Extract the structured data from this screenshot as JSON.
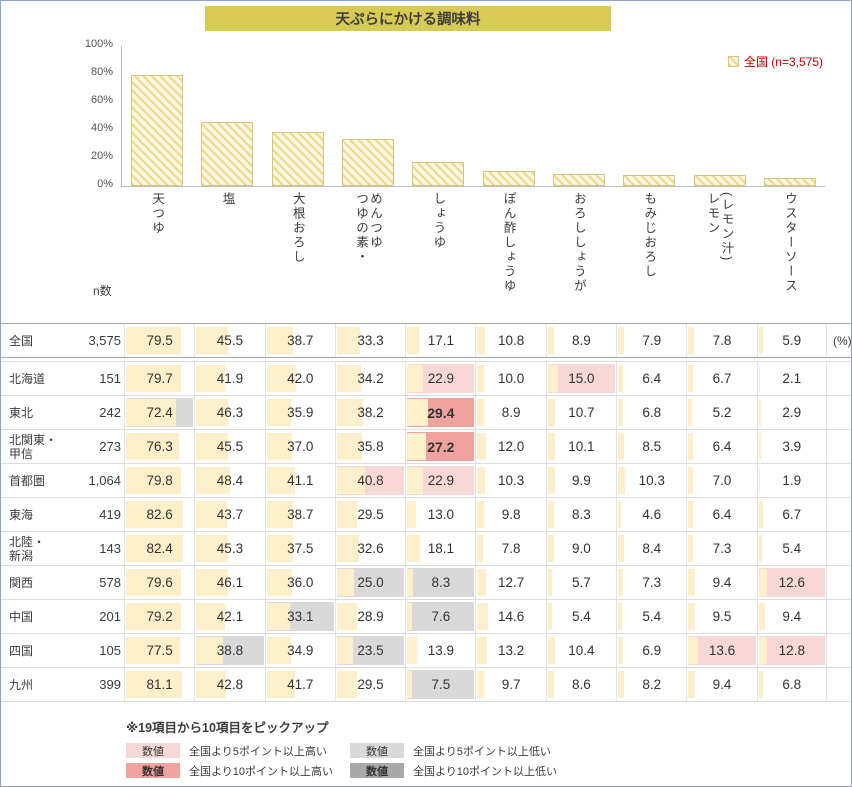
{
  "title": {
    "text": "天ぷらにかける調味料"
  },
  "chart_data": {
    "type": "bar",
    "title": "天ぷらにかける調味料",
    "legend": "全国 (n=3,575)",
    "categories": [
      "天つゆ",
      "塩",
      "大根おろし",
      "つゆの素・\nめんつゆ",
      "しょうゆ",
      "ぽん酢しょうゆ",
      "おろししょうが",
      "もみじおろし",
      "レモン\n(レモン汁)",
      "ウスターソース"
    ],
    "values": [
      79.5,
      45.5,
      38.7,
      33.3,
      17.1,
      10.8,
      8.9,
      7.9,
      7.8,
      5.9
    ],
    "xlabel": "",
    "ylabel": "",
    "ylim": [
      0,
      100
    ],
    "yticks": [
      "100%",
      "80%",
      "60%",
      "40%",
      "20%",
      "0%"
    ],
    "grid": false,
    "legend_position": "top-right"
  },
  "table": {
    "n_label": "n数",
    "unit_label": "(%)",
    "rows": [
      {
        "region": "全国",
        "n": "3,575",
        "national": true,
        "cells": [
          {
            "v": "79.5"
          },
          {
            "v": "45.5"
          },
          {
            "v": "38.7"
          },
          {
            "v": "33.3"
          },
          {
            "v": "17.1"
          },
          {
            "v": "10.8"
          },
          {
            "v": "8.9"
          },
          {
            "v": "7.9"
          },
          {
            "v": "7.8"
          },
          {
            "v": "5.9"
          }
        ]
      },
      {
        "region": "北海道",
        "n": "151",
        "cells": [
          {
            "v": "79.7"
          },
          {
            "v": "41.9"
          },
          {
            "v": "42.0"
          },
          {
            "v": "34.2"
          },
          {
            "v": "22.9",
            "s": "h5"
          },
          {
            "v": "10.0"
          },
          {
            "v": "15.0",
            "s": "h5"
          },
          {
            "v": "6.4"
          },
          {
            "v": "6.7"
          },
          {
            "v": "2.1"
          }
        ]
      },
      {
        "region": "東北",
        "n": "242",
        "cells": [
          {
            "v": "72.4",
            "s": "l5"
          },
          {
            "v": "46.3"
          },
          {
            "v": "35.9"
          },
          {
            "v": "38.2"
          },
          {
            "v": "29.4",
            "s": "h10"
          },
          {
            "v": "8.9"
          },
          {
            "v": "10.7"
          },
          {
            "v": "6.8"
          },
          {
            "v": "5.2"
          },
          {
            "v": "2.9"
          }
        ]
      },
      {
        "region": "北関東・\n甲信",
        "n": "273",
        "cells": [
          {
            "v": "76.3"
          },
          {
            "v": "45.5"
          },
          {
            "v": "37.0"
          },
          {
            "v": "35.8"
          },
          {
            "v": "27.2",
            "s": "h10"
          },
          {
            "v": "12.0"
          },
          {
            "v": "10.1"
          },
          {
            "v": "8.5"
          },
          {
            "v": "6.4"
          },
          {
            "v": "3.9"
          }
        ]
      },
      {
        "region": "首都圏",
        "n": "1,064",
        "cells": [
          {
            "v": "79.8"
          },
          {
            "v": "48.4"
          },
          {
            "v": "41.1"
          },
          {
            "v": "40.8",
            "s": "h5"
          },
          {
            "v": "22.9",
            "s": "h5"
          },
          {
            "v": "10.3"
          },
          {
            "v": "9.9"
          },
          {
            "v": "10.3"
          },
          {
            "v": "7.0"
          },
          {
            "v": "1.9"
          }
        ]
      },
      {
        "region": "東海",
        "n": "419",
        "cells": [
          {
            "v": "82.6"
          },
          {
            "v": "43.7"
          },
          {
            "v": "38.7"
          },
          {
            "v": "29.5"
          },
          {
            "v": "13.0"
          },
          {
            "v": "9.8"
          },
          {
            "v": "8.3"
          },
          {
            "v": "4.6"
          },
          {
            "v": "6.4"
          },
          {
            "v": "6.7"
          }
        ]
      },
      {
        "region": "北陸・\n新潟",
        "n": "143",
        "cells": [
          {
            "v": "82.4"
          },
          {
            "v": "45.3"
          },
          {
            "v": "37.5"
          },
          {
            "v": "32.6"
          },
          {
            "v": "18.1"
          },
          {
            "v": "7.8"
          },
          {
            "v": "9.0"
          },
          {
            "v": "8.4"
          },
          {
            "v": "7.3"
          },
          {
            "v": "5.4"
          }
        ]
      },
      {
        "region": "関西",
        "n": "578",
        "cells": [
          {
            "v": "79.6"
          },
          {
            "v": "46.1"
          },
          {
            "v": "36.0"
          },
          {
            "v": "25.0",
            "s": "l5"
          },
          {
            "v": "8.3",
            "s": "l5"
          },
          {
            "v": "12.7"
          },
          {
            "v": "5.7"
          },
          {
            "v": "7.3"
          },
          {
            "v": "9.4"
          },
          {
            "v": "12.6",
            "s": "h5"
          }
        ]
      },
      {
        "region": "中国",
        "n": "201",
        "cells": [
          {
            "v": "79.2"
          },
          {
            "v": "42.1"
          },
          {
            "v": "33.1",
            "s": "l5"
          },
          {
            "v": "28.9"
          },
          {
            "v": "7.6",
            "s": "l5"
          },
          {
            "v": "14.6"
          },
          {
            "v": "5.4"
          },
          {
            "v": "5.4"
          },
          {
            "v": "9.5"
          },
          {
            "v": "9.4"
          }
        ]
      },
      {
        "region": "四国",
        "n": "105",
        "cells": [
          {
            "v": "77.5"
          },
          {
            "v": "38.8",
            "s": "l5"
          },
          {
            "v": "34.9"
          },
          {
            "v": "23.5",
            "s": "l5"
          },
          {
            "v": "13.9"
          },
          {
            "v": "13.2"
          },
          {
            "v": "10.4"
          },
          {
            "v": "6.9"
          },
          {
            "v": "13.6",
            "s": "h5"
          },
          {
            "v": "12.8",
            "s": "h5"
          }
        ]
      },
      {
        "region": "九州",
        "n": "399",
        "cells": [
          {
            "v": "81.1"
          },
          {
            "v": "42.8"
          },
          {
            "v": "41.7"
          },
          {
            "v": "29.5"
          },
          {
            "v": "7.5",
            "s": "l5"
          },
          {
            "v": "9.7"
          },
          {
            "v": "8.6"
          },
          {
            "v": "8.2"
          },
          {
            "v": "9.4"
          },
          {
            "v": "6.8"
          }
        ]
      }
    ]
  },
  "footer": {
    "note": "※19項目から10項目をピックアップ",
    "legend": [
      {
        "label": "数値",
        "style": "high5",
        "desc": "全国より5ポイント以上高い"
      },
      {
        "label": "数値",
        "style": "low5",
        "desc": "全国より5ポイント以上低い"
      },
      {
        "label": "数値",
        "style": "high10",
        "desc": "全国より10ポイント以上高い"
      },
      {
        "label": "数値",
        "style": "low10",
        "desc": "全国より10ポイント以上低い"
      }
    ]
  },
  "colors": {
    "title_bg": "#d7cb54",
    "legend_text": "#c00000",
    "chart_bar_fill": "#fdf7e1",
    "chart_bar_stripe": "#eed98e",
    "chart_bar_border": "#d8c57c",
    "cell_bar": "#fcefc9",
    "high5": "#f8d8d6",
    "high10": "#f0a29e",
    "low5": "#d9d9d9",
    "low10": "#a9a9a9"
  }
}
